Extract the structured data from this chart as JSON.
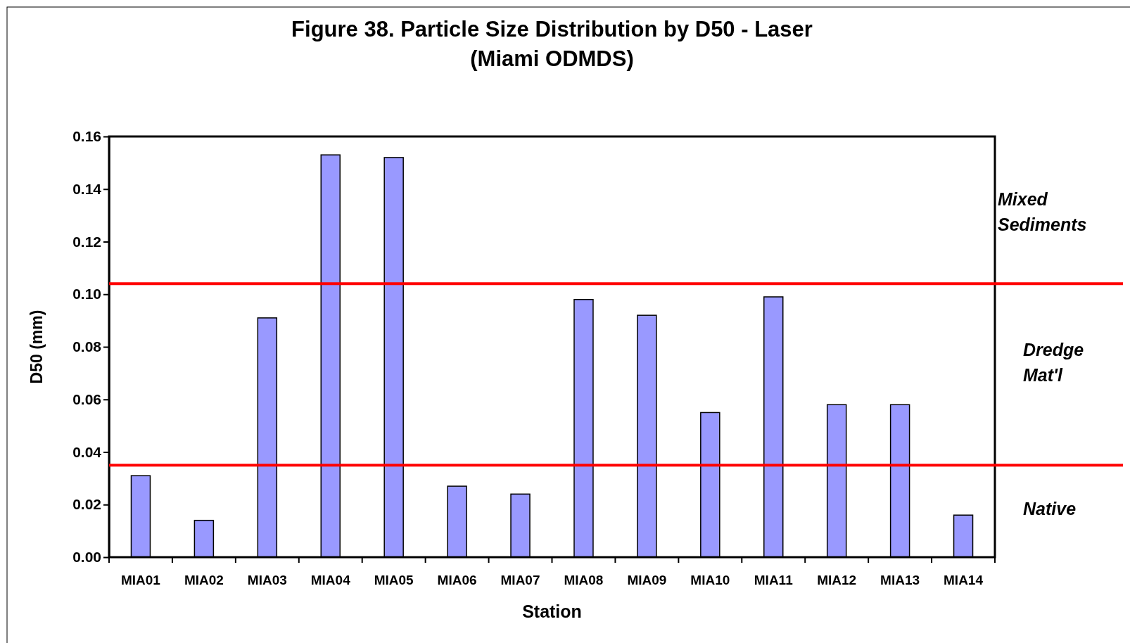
{
  "chart_data": {
    "type": "bar",
    "title": "Figure 38.  Particle Size Distribution by D50 - Laser",
    "subtitle": "(Miami ODMDS)",
    "xlabel": "Station",
    "ylabel": "D50 (mm)",
    "categories": [
      "MIA01",
      "MIA02",
      "MIA03",
      "MIA04",
      "MIA05",
      "MIA06",
      "MIA07",
      "MIA08",
      "MIA09",
      "MIA10",
      "MIA11",
      "MIA12",
      "MIA13",
      "MIA14"
    ],
    "values": [
      0.031,
      0.014,
      0.091,
      0.153,
      0.152,
      0.027,
      0.024,
      0.098,
      0.092,
      0.055,
      0.099,
      0.058,
      0.058,
      0.016
    ],
    "color": "#9999ff",
    "ylim": [
      0,
      0.16
    ],
    "yticks": [
      {
        "value": 0,
        "label": "0.00"
      },
      {
        "value": 0.02,
        "label": "0.02"
      },
      {
        "value": 0.04,
        "label": "0.04"
      },
      {
        "value": 0.06,
        "label": "0.06"
      },
      {
        "value": 0.08,
        "label": "0.08"
      },
      {
        "value": 0.1,
        "label": "0.10"
      },
      {
        "value": 0.12,
        "label": "0.12"
      },
      {
        "value": 0.14,
        "label": "0.14"
      },
      {
        "value": 0.16,
        "label": "0.16"
      }
    ],
    "ref_lines": [
      {
        "axis": "y",
        "value": 0.104,
        "color": "#ff0000"
      },
      {
        "axis": "y",
        "value": 0.035,
        "color": "#ff0000"
      }
    ],
    "annotations": [
      "Mixed Sediments",
      "Dredge Mat'l",
      "Native"
    ],
    "grid": false
  }
}
